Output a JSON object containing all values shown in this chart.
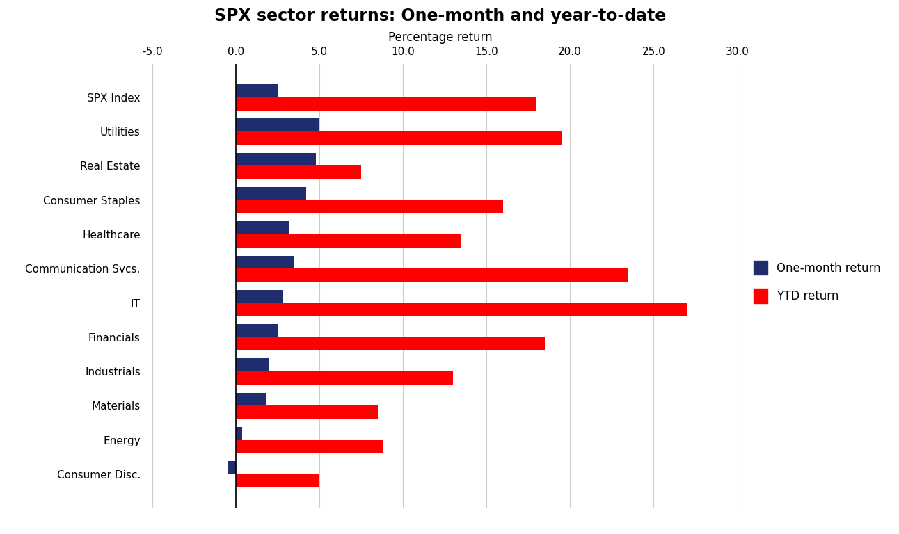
{
  "title": "SPX sector returns: One-month and year-to-date",
  "xlabel": "Percentage return",
  "categories": [
    "SPX Index",
    "Utilities",
    "Real Estate",
    "Consumer Staples",
    "Healthcare",
    "Communication Svcs.",
    "IT",
    "Financials",
    "Industrials",
    "Materials",
    "Energy",
    "Consumer Disc."
  ],
  "one_month": [
    2.5,
    5.0,
    4.8,
    4.2,
    3.2,
    3.5,
    2.8,
    2.5,
    2.0,
    1.8,
    0.4,
    -0.5
  ],
  "ytd": [
    18.0,
    19.5,
    7.5,
    16.0,
    13.5,
    23.5,
    27.0,
    18.5,
    13.0,
    8.5,
    8.8,
    5.0
  ],
  "one_month_color": "#1f2d6e",
  "ytd_color": "#ff0000",
  "background_color": "#ffffff",
  "xlim": [
    -5.5,
    30.0
  ],
  "xticks": [
    -5.0,
    0.0,
    5.0,
    10.0,
    15.0,
    20.0,
    25.0,
    30.0
  ],
  "xtick_labels": [
    "-5.0",
    "0.0",
    "5.0",
    "10.0",
    "15.0",
    "20.0",
    "25.0",
    "30.0"
  ],
  "bar_height": 0.38,
  "legend_labels": [
    "One-month return",
    "YTD return"
  ],
  "title_fontsize": 17,
  "axis_label_fontsize": 12,
  "tick_fontsize": 11,
  "legend_fontsize": 12
}
